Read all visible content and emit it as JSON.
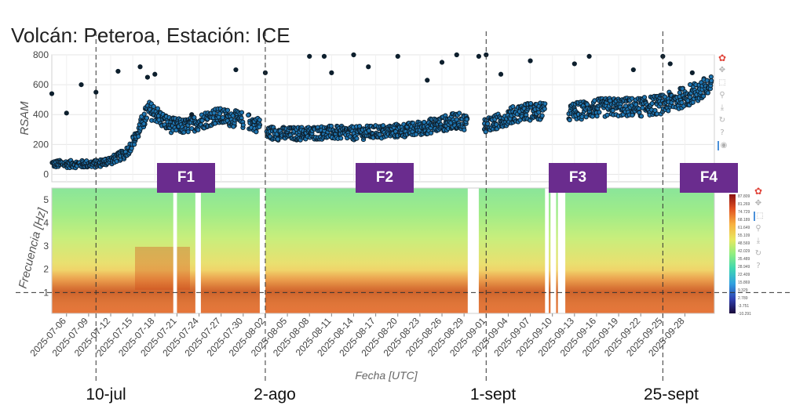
{
  "title": "Volcán: Peteroa, Estación: ICE",
  "phase_labels": [
    "F1",
    "F2",
    "F3",
    "F4"
  ],
  "event_labels": [
    "10-jul",
    "2-ago",
    "1-sept",
    "25-sept"
  ],
  "toolbar_icons": [
    "bokeh-logo-icon",
    "pan-icon",
    "box-zoom-icon",
    "wheel-zoom-icon",
    "save-icon",
    "reset-icon",
    "help-icon",
    "hover-icon"
  ],
  "colors": {
    "points": "#0d1f2d",
    "point_fill": "#1f77b4",
    "phase_box": "#6a2c8e",
    "grid": "#e6e6e6"
  },
  "chart_data": [
    {
      "type": "scatter",
      "title": "",
      "xlabel": "",
      "ylabel": "RSAM",
      "ylim": [
        -50,
        800
      ],
      "yticks": [
        0,
        200,
        400,
        600,
        800
      ],
      "xlim": [
        "2025-07-04",
        "2025-10-02"
      ],
      "grid": true,
      "gaps": [
        [
          "2025-07-30T00",
          "2025-07-30T12"
        ],
        [
          "2025-08-01T06",
          "2025-08-02T00"
        ],
        [
          "2025-08-29T12",
          "2025-08-31T12"
        ],
        [
          "2025-09-09T00",
          "2025-09-12T00"
        ]
      ],
      "trend": [
        [
          "2025-07-04",
          70
        ],
        [
          "2025-07-07",
          68
        ],
        [
          "2025-07-10",
          70
        ],
        [
          "2025-07-12",
          95
        ],
        [
          "2025-07-14",
          140
        ],
        [
          "2025-07-15",
          220
        ],
        [
          "2025-07-16",
          320
        ],
        [
          "2025-07-17",
          430
        ],
        [
          "2025-07-18",
          410
        ],
        [
          "2025-07-19",
          360
        ],
        [
          "2025-07-20",
          330
        ],
        [
          "2025-07-22",
          320
        ],
        [
          "2025-07-24",
          350
        ],
        [
          "2025-07-26",
          390
        ],
        [
          "2025-07-28",
          380
        ],
        [
          "2025-07-30",
          360
        ],
        [
          "2025-08-01",
          330
        ],
        [
          "2025-08-02",
          280
        ],
        [
          "2025-08-05",
          270
        ],
        [
          "2025-08-10",
          280
        ],
        [
          "2025-08-14",
          275
        ],
        [
          "2025-08-18",
          285
        ],
        [
          "2025-08-22",
          300
        ],
        [
          "2025-08-25",
          330
        ],
        [
          "2025-08-28",
          360
        ],
        [
          "2025-08-29",
          350
        ],
        [
          "2025-08-31",
          330
        ],
        [
          "2025-09-02",
          340
        ],
        [
          "2025-09-04",
          390
        ],
        [
          "2025-09-06",
          420
        ],
        [
          "2025-09-08",
          420
        ],
        [
          "2025-09-12",
          410
        ],
        [
          "2025-09-15",
          440
        ],
        [
          "2025-09-18",
          450
        ],
        [
          "2025-09-22",
          450
        ],
        [
          "2025-09-25",
          470
        ],
        [
          "2025-09-28",
          520
        ],
        [
          "2025-10-01",
          580
        ]
      ],
      "outliers": [
        [
          "2025-07-04",
          540
        ],
        [
          "2025-07-06",
          410
        ],
        [
          "2025-07-08",
          600
        ],
        [
          "2025-07-10",
          550
        ],
        [
          "2025-07-13",
          690
        ],
        [
          "2025-07-16",
          720
        ],
        [
          "2025-07-17",
          650
        ],
        [
          "2025-07-18",
          670
        ],
        [
          "2025-07-23",
          400
        ],
        [
          "2025-07-29",
          700
        ],
        [
          "2025-08-02",
          680
        ],
        [
          "2025-08-08",
          790
        ],
        [
          "2025-08-10",
          790
        ],
        [
          "2025-08-11",
          680
        ],
        [
          "2025-08-14",
          800
        ],
        [
          "2025-08-16",
          720
        ],
        [
          "2025-08-20",
          790
        ],
        [
          "2025-08-24",
          630
        ],
        [
          "2025-08-26",
          750
        ],
        [
          "2025-08-28",
          800
        ],
        [
          "2025-08-31",
          790
        ],
        [
          "2025-09-01",
          800
        ],
        [
          "2025-09-03",
          670
        ],
        [
          "2025-09-07",
          760
        ],
        [
          "2025-09-13",
          740
        ],
        [
          "2025-09-15",
          790
        ],
        [
          "2025-09-21",
          700
        ],
        [
          "2025-09-25",
          790
        ],
        [
          "2025-09-26",
          740
        ],
        [
          "2025-09-29",
          680
        ]
      ]
    },
    {
      "type": "heatmap",
      "title": "",
      "xlabel": "Fecha [UTC]",
      "ylabel": "Frecuencia [Hz]",
      "ylim": [
        0.1,
        5.5
      ],
      "yticks": [
        1,
        2,
        3,
        4,
        5
      ],
      "xticks": [
        "2025-07-06",
        "2025-07-09",
        "2025-07-12",
        "2025-07-15",
        "2025-07-18",
        "2025-07-21",
        "2025-07-24",
        "2025-07-27",
        "2025-07-30",
        "2025-08-02",
        "2025-08-05",
        "2025-08-08",
        "2025-08-11",
        "2025-08-14",
        "2025-08-17",
        "2025-08-20",
        "2025-08-23",
        "2025-08-26",
        "2025-08-29",
        "2025-09-01",
        "2025-09-04",
        "2025-09-07",
        "2025-09-10",
        "2025-09-13",
        "2025-09-16",
        "2025-09-19",
        "2025-09-22",
        "2025-09-25",
        "2025-09-28"
      ],
      "gaps": [
        [
          "2025-07-20T12",
          "2025-07-21T00"
        ],
        [
          "2025-07-23T12",
          "2025-07-24T06"
        ],
        [
          "2025-08-01T06",
          "2025-08-02T00"
        ],
        [
          "2025-08-29T12",
          "2025-08-31T00"
        ],
        [
          "2025-09-09T00",
          "2025-09-09T12"
        ],
        [
          "2025-09-09T18",
          "2025-09-10T12"
        ],
        [
          "2025-09-10T18",
          "2025-09-11T18"
        ]
      ],
      "colorbar_ticks": [
        "87.809",
        "81.269",
        "74.729",
        "68.189",
        "61.649",
        "55.109",
        "48.569",
        "42.029",
        "35.489",
        "28.949",
        "22.409",
        "15.869",
        "9.329",
        "2.789",
        "-3.751",
        "-10.291"
      ]
    }
  ],
  "reference_lines": {
    "vertical_dates": [
      "2025-07-10",
      "2025-08-02",
      "2025-09-01",
      "2025-09-25"
    ],
    "horizontal_hz": 1
  }
}
